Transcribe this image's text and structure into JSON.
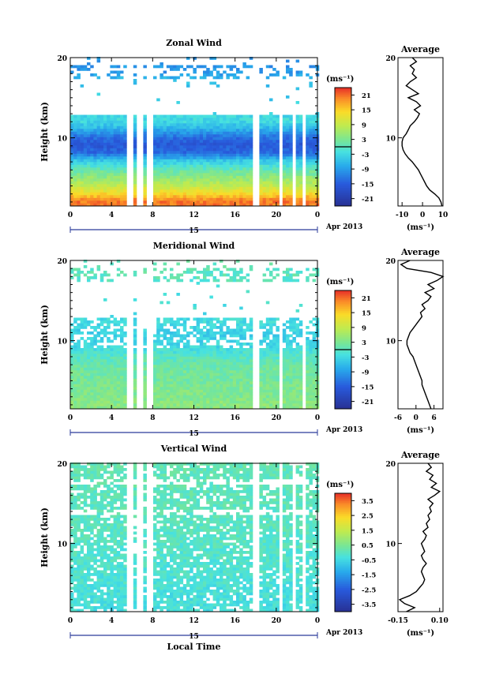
{
  "figure": {
    "date_label": "Apr 2013",
    "day_label": "15",
    "xlabel_bottom": "Local Time",
    "ylabel": "Height (km)",
    "colorbar_unit": "(ms⁻¹)",
    "profile_title": "Average",
    "profile_xunit": "(ms⁻¹)"
  },
  "chart_data": [
    {
      "type": "heatmap",
      "title": "Zonal Wind",
      "xlabel": "",
      "ylabel": "Height (km)",
      "x_ticks": [
        "0",
        "4",
        "8",
        "12",
        "16",
        "20",
        "0"
      ],
      "xlim_hours": [
        0,
        24
      ],
      "y_ticks": [
        "10",
        "20"
      ],
      "ylim_km": [
        1.5,
        20
      ],
      "colorbar": {
        "min": -24,
        "max": 24,
        "ticks": [
          "-21",
          "-15",
          "-9",
          "-3",
          "3",
          "9",
          "15",
          "21"
        ],
        "zero_line": true
      },
      "data_gaps_hours": [
        [
          5.2,
          5.9
        ],
        [
          6.4,
          6.8
        ],
        [
          7.3,
          7.8
        ],
        [
          17.6,
          18.1
        ],
        [
          20.0,
          20.4
        ],
        [
          21.3,
          21.6
        ],
        [
          22.5,
          22.8
        ]
      ],
      "field_rows_km": [
        {
          "h": 2,
          "v": 20
        },
        {
          "h": 3,
          "v": 13
        },
        {
          "h": 4,
          "v": 8
        },
        {
          "h": 5,
          "v": 4
        },
        {
          "h": 6,
          "v": 0
        },
        {
          "h": 7,
          "v": -5
        },
        {
          "h": 8,
          "v": -14
        },
        {
          "h": 9,
          "v": -16
        },
        {
          "h": 10,
          "v": -13
        },
        {
          "h": 11,
          "v": -7
        },
        {
          "h": 12,
          "v": -3
        },
        {
          "h": 17,
          "v": -6
        },
        {
          "h": 18,
          "v": -10
        }
      ],
      "profile": {
        "xlim": [
          -12,
          10
        ],
        "x_ticks": [
          "-10",
          "0",
          "10"
        ],
        "y_ticks": [
          "10",
          "20"
        ],
        "heights_km": [
          1.5,
          2,
          2.5,
          3,
          3.5,
          4,
          4.5,
          5,
          5.5,
          6,
          6.5,
          7,
          7.5,
          8,
          8.5,
          9,
          9.5,
          10,
          10.5,
          11,
          11.5,
          12,
          12.5,
          13,
          13.5,
          14,
          14.5,
          15,
          15.5,
          16,
          16.5,
          17,
          17.5,
          18,
          18.5,
          19,
          19.5,
          20
        ],
        "values": [
          9.5,
          9,
          8,
          6,
          3.5,
          2,
          1,
          0,
          -1,
          -2,
          -3.5,
          -5,
          -7,
          -8.5,
          -9.5,
          -10,
          -10,
          -9.5,
          -8,
          -7,
          -6,
          -4,
          -2.5,
          -1.5,
          -4,
          -1,
          -3,
          -7,
          -2,
          -5,
          -8,
          -6,
          -3,
          -5,
          -4,
          -6,
          -3,
          -5
        ]
      }
    },
    {
      "type": "heatmap",
      "title": "Meridional Wind",
      "xlabel": "",
      "ylabel": "Height (km)",
      "x_ticks": [
        "0",
        "4",
        "8",
        "12",
        "16",
        "20",
        "0"
      ],
      "xlim_hours": [
        0,
        24
      ],
      "y_ticks": [
        "10",
        "20"
      ],
      "ylim_km": [
        1.5,
        20
      ],
      "colorbar": {
        "min": -24,
        "max": 24,
        "ticks": [
          "-21",
          "-15",
          "-9",
          "-3",
          "3",
          "9",
          "15",
          "21"
        ],
        "zero_line": true
      },
      "data_gaps_hours": [
        [
          5.2,
          5.9
        ],
        [
          6.4,
          6.8
        ],
        [
          7.3,
          7.8
        ],
        [
          17.6,
          18.1
        ],
        [
          20.0,
          20.4
        ],
        [
          22.5,
          22.8
        ]
      ],
      "field_rows_km": [
        {
          "h": 2,
          "v": 4
        },
        {
          "h": 3,
          "v": 3
        },
        {
          "h": 4,
          "v": 3
        },
        {
          "h": 5,
          "v": 2
        },
        {
          "h": 6,
          "v": 2
        },
        {
          "h": 7,
          "v": 1
        },
        {
          "h": 8,
          "v": -1
        },
        {
          "h": 9,
          "v": -3
        },
        {
          "h": 10,
          "v": -4
        },
        {
          "h": 11,
          "v": -4
        },
        {
          "h": 12,
          "v": -3
        },
        {
          "h": 17,
          "v": -1
        },
        {
          "h": 18,
          "v": 0
        }
      ],
      "profile": {
        "xlim": [
          -6,
          9
        ],
        "x_ticks": [
          "-6",
          "0",
          "6"
        ],
        "y_ticks": [
          "10",
          "20"
        ],
        "heights_km": [
          1.5,
          2,
          2.5,
          3,
          3.5,
          4,
          4.5,
          5,
          5.5,
          6,
          6.5,
          7,
          7.5,
          8,
          8.5,
          9,
          9.5,
          10,
          10.5,
          11,
          11.5,
          12,
          12.5,
          13,
          13.5,
          14,
          14.5,
          15,
          15.5,
          16,
          16.5,
          17,
          17.5,
          18,
          18.5,
          19,
          19.5,
          20
        ],
        "values": [
          5,
          4.5,
          4,
          3.5,
          3,
          2.5,
          2,
          2,
          1.5,
          1,
          0.5,
          0,
          -0.5,
          -1,
          -2,
          -2.5,
          -3,
          -3,
          -2.5,
          -2,
          -1,
          0,
          1,
          2,
          1.5,
          3,
          2,
          4,
          5,
          3,
          6,
          4,
          7,
          9,
          5,
          -3,
          -5,
          -2
        ]
      }
    },
    {
      "type": "heatmap",
      "title": "Vertical Wind",
      "xlabel": "Local Time",
      "ylabel": "Height (km)",
      "x_ticks": [
        "0",
        "4",
        "8",
        "12",
        "16",
        "20",
        "0"
      ],
      "xlim_hours": [
        0,
        24
      ],
      "y_ticks": [
        "10",
        "20"
      ],
      "ylim_km": [
        1.5,
        20
      ],
      "colorbar": {
        "min": -4,
        "max": 4,
        "ticks": [
          "-3.5",
          "-2.5",
          "-1.5",
          "-0.5",
          "0.5",
          "1.5",
          "2.5",
          "3.5"
        ],
        "zero_line": false
      },
      "data_gaps_hours": [
        [
          5.2,
          5.9
        ],
        [
          6.4,
          6.8
        ],
        [
          7.3,
          7.8
        ],
        [
          17.6,
          18.1
        ],
        [
          20.0,
          20.4
        ],
        [
          21.3,
          21.6
        ],
        [
          22.5,
          22.8
        ]
      ],
      "field_rows_km": [
        {
          "h": 2,
          "v": -0.4
        },
        {
          "h": 5,
          "v": -0.3
        },
        {
          "h": 10,
          "v": -0.1
        },
        {
          "h": 15,
          "v": 0
        },
        {
          "h": 20,
          "v": 0.1
        }
      ],
      "profile": {
        "xlim": [
          -0.15,
          0.12
        ],
        "x_ticks": [
          "-0.15",
          "0.10"
        ],
        "y_ticks": [
          "10",
          "20"
        ],
        "heights_km": [
          1.5,
          2,
          2.5,
          3,
          3.5,
          4,
          4.5,
          5,
          5.5,
          6,
          6.5,
          7,
          7.5,
          8,
          8.5,
          9,
          9.5,
          10,
          10.5,
          11,
          11.5,
          12,
          12.5,
          13,
          13.5,
          14,
          14.5,
          15,
          15.5,
          16,
          16.5,
          17,
          17.5,
          18,
          18.5,
          19,
          19.5,
          20
        ],
        "values": [
          -0.1,
          -0.05,
          -0.11,
          -0.14,
          -0.08,
          -0.04,
          -0.02,
          0,
          0.01,
          0.0,
          -0.01,
          0.0,
          0.02,
          0.0,
          -0.01,
          0.01,
          0.0,
          -0.01,
          0.01,
          0.02,
          0.0,
          0.03,
          0.02,
          0.04,
          0.03,
          0.05,
          0.04,
          0.06,
          0.03,
          0.07,
          0.1,
          0.05,
          0.08,
          0.04,
          0.06,
          0.02,
          0.05,
          0.03
        ]
      }
    }
  ]
}
